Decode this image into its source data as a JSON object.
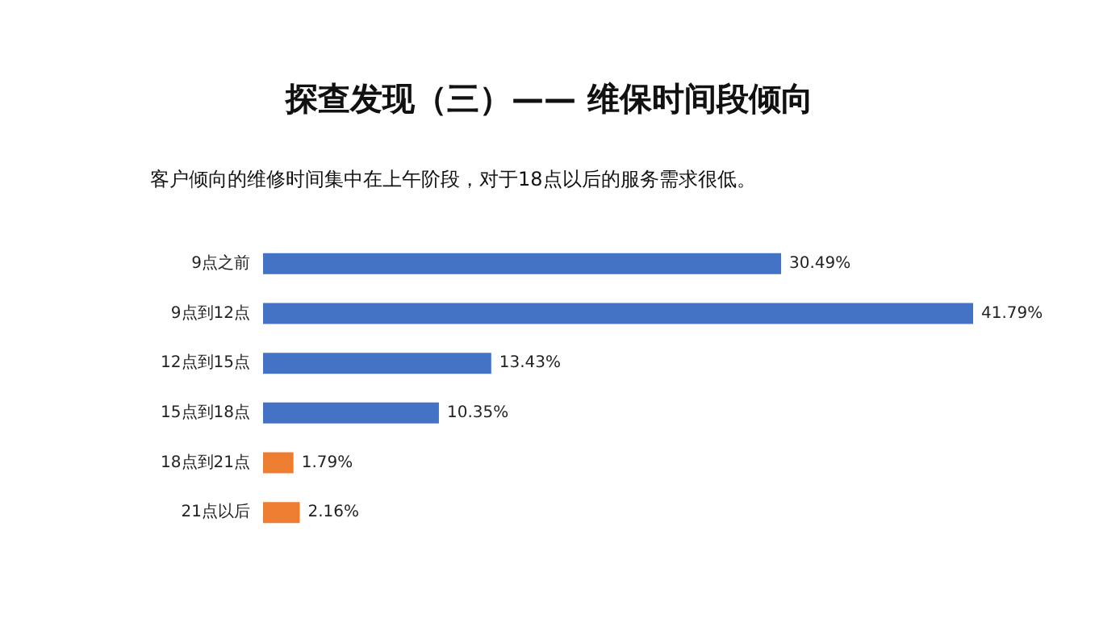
{
  "chart_data": {
    "type": "bar",
    "orientation": "horizontal",
    "title": "探查发现（三）—— 维保时间段倾向",
    "subtitle": "客户倾向的维修时间集中在上午阶段，对于18点以后的服务需求很低。",
    "categories": [
      "9点之前",
      "9点到12点",
      "12点到15点",
      "15点到18点",
      "18点到21点",
      "21点以后"
    ],
    "values": [
      30.49,
      41.79,
      13.43,
      10.35,
      1.79,
      2.16
    ],
    "value_labels": [
      "30.49%",
      "41.79%",
      "13.43%",
      "10.35%",
      "1.79%",
      "2.16%"
    ],
    "colors": [
      "#4472c4",
      "#4472c4",
      "#4472c4",
      "#4472c4",
      "#ed7d31",
      "#ed7d31"
    ],
    "grid": false
  }
}
